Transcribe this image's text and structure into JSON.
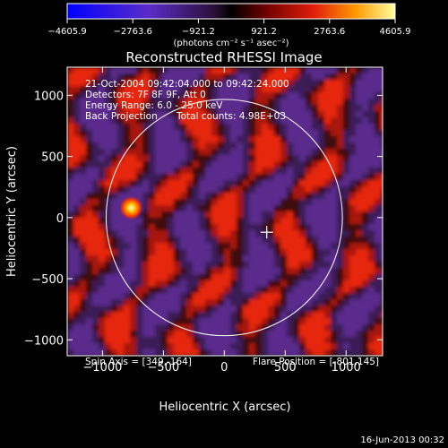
{
  "colorbar": {
    "ticks": [
      "−4605.9",
      "−2763.6",
      "−921.2",
      "921.2",
      "2763.6",
      "4605.9"
    ],
    "unit_label": "(photons cm⁻² s⁻¹ asec⁻²)",
    "range": [
      -4605.9,
      4605.9
    ]
  },
  "chart_data": {
    "type": "heatmap",
    "title": "Reconstructed RHESSI Image",
    "xlabel": "Heliocentric X (arcsec)",
    "ylabel": "Heliocentric Y (arcsec)",
    "xlim": [
      -1290,
      1300
    ],
    "ylim": [
      -1130,
      1230
    ],
    "x_ticks": [
      -1000,
      -500,
      0,
      500,
      1000
    ],
    "y_ticks": [
      -1000,
      -500,
      0,
      500,
      1000
    ],
    "x_tick_labels": [
      "−1000",
      "−500",
      "0",
      "500",
      "1000"
    ],
    "y_tick_labels": [
      "−1000",
      "−500",
      "0",
      "500",
      "1000"
    ],
    "solar_limb": {
      "center": [
        0,
        0
      ],
      "radius_arcsec": 970
    },
    "crosshair": [
      349,
      -120
    ],
    "bright_source": {
      "x": -801,
      "y": 145,
      "peak": 4605.9
    },
    "annotations": {
      "time_range": "21-Oct-2004 09:42:04.000 to 09:42:24.000",
      "detectors": "Detectors: 7F 8F 9F, Att 0",
      "energy": "Energy Range: 6.0 - 25.0 keV",
      "method": "Back Projection",
      "counts": "Total counts: 4.98E+03",
      "spin_axis": "Spin Axis = [349,-164]",
      "flare_position": "Flare Position = [-801,145]"
    },
    "timestamp": "16-Jun-2013 00:32"
  }
}
